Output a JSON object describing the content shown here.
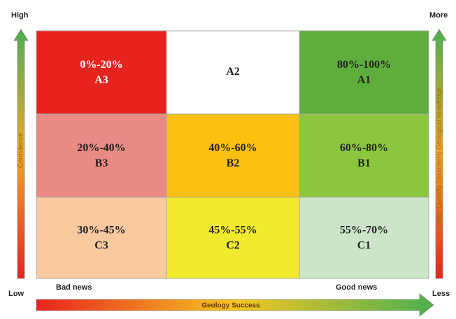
{
  "axes": {
    "left_top": "High",
    "left_bottom": "Low",
    "left_label": "Confidence",
    "right_top": "More",
    "right_bottom": "Less",
    "right_label": "Quality, Quantity (document) Geological knowledge",
    "bottom_left": "Bad news",
    "bottom_right": "Good news",
    "bottom_label": "Geology Success"
  },
  "cells": [
    {
      "range": "0%-20%",
      "code": "A3"
    },
    {
      "code": "A2"
    },
    {
      "range": "80%-100%",
      "code": "A1"
    },
    {
      "range": "20%-40%",
      "code": "B3"
    },
    {
      "range": "40%-60%",
      "code": "B2"
    },
    {
      "range": "60%-80%",
      "code": "B1"
    },
    {
      "range": "30%-45%",
      "code": "C3"
    },
    {
      "range": "45%-55%",
      "code": "C2"
    },
    {
      "range": "55%-70%",
      "code": "C1"
    }
  ]
}
